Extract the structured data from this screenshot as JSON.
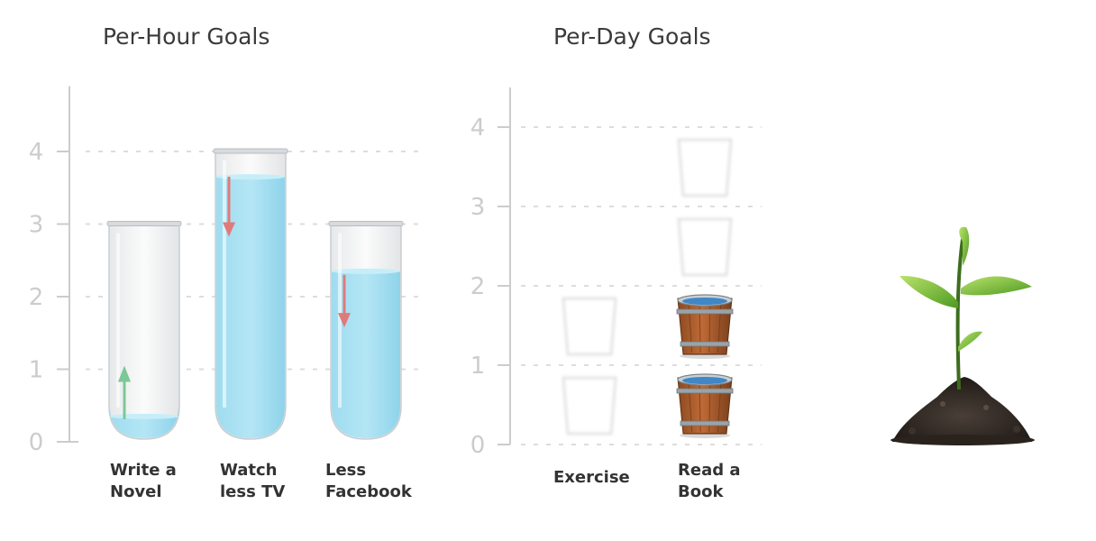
{
  "chart_data": [
    {
      "type": "bar",
      "title": "Per-Hour Goals",
      "categories": [
        "Write a\nNovel",
        "Watch\nless TV",
        "Less\nFacebook"
      ],
      "capacity": [
        3,
        4,
        3
      ],
      "values": [
        0.35,
        3.65,
        2.35
      ],
      "trend": [
        "up",
        "down",
        "down"
      ],
      "yticks": [
        0,
        1,
        2,
        3,
        4
      ],
      "ylim": [
        0,
        4.9
      ],
      "grid": true,
      "colors": {
        "fill": "#b4e6f5",
        "arrow_up": "#7cc796",
        "arrow_down": "#e07a7a"
      }
    },
    {
      "type": "bar",
      "title": "Per-Day Goals",
      "categories": [
        "Exercise",
        "Read a\nBook"
      ],
      "capacity": [
        2,
        4
      ],
      "values": [
        0,
        2
      ],
      "yticks": [
        0,
        1,
        2,
        3,
        4
      ],
      "ylim": [
        0,
        4.5
      ],
      "grid": true,
      "colors": {
        "bucket_wood": "#c06a35",
        "bucket_metal": "#9aa3a8",
        "water": "#3f87c6"
      }
    }
  ],
  "decoration": {
    "icon": "seedling-icon"
  }
}
